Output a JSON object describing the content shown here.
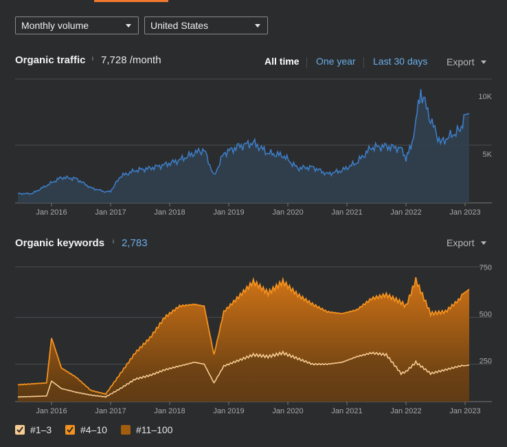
{
  "filters": {
    "volume_mode": "Monthly volume",
    "country": "United States"
  },
  "traffic": {
    "title": "Organic traffic",
    "info_mark": "i",
    "value": "7,728 /month",
    "ranges": {
      "all_time": "All time",
      "one_year": "One year",
      "last_30": "Last 30 days"
    },
    "export_label": "Export"
  },
  "keywords": {
    "title": "Organic keywords",
    "info_mark": "i",
    "value": "2,783",
    "export_label": "Export"
  },
  "legend": [
    {
      "label": "#1–3",
      "color": "#f8cd93",
      "checked": true
    },
    {
      "label": "#4–10",
      "color": "#f5921e",
      "checked": true
    },
    {
      "label": "#11–100",
      "color": "#a35d0f",
      "checked": false
    }
  ],
  "colors": {
    "traffic_line": "#3d7dc6",
    "traffic_fill": "#31404f",
    "kw_total_line": "#f5921e",
    "kw_top3_line": "#f8cd93",
    "grid": "#4a4b4e",
    "accent": "#f0782d"
  },
  "chart_data": [
    {
      "type": "line",
      "title": "Organic traffic",
      "x_tick_labels": [
        "Jan 2016",
        "Jan 2017",
        "Jan 2018",
        "Jan 2019",
        "Jan 2020",
        "Jan 2021",
        "Jan 2022",
        "Jan 2023"
      ],
      "y_tick_labels": [
        "10K",
        "5K"
      ],
      "ylim": [
        0,
        10000
      ],
      "grid": true,
      "series": [
        {
          "values": [
            [
              "2015-06",
              800
            ],
            [
              "2015-09",
              800
            ],
            [
              "2015-12",
              1500
            ],
            [
              "2016-03",
              2200
            ],
            [
              "2016-06",
              2100
            ],
            [
              "2016-09",
              1300
            ],
            [
              "2016-12",
              950
            ],
            [
              "2017-01",
              1000
            ],
            [
              "2017-03",
              2300
            ],
            [
              "2017-06",
              2800
            ],
            [
              "2017-09",
              3000
            ],
            [
              "2017-12",
              3300
            ],
            [
              "2018-03",
              3700
            ],
            [
              "2018-06",
              4300
            ],
            [
              "2018-08",
              4600
            ],
            [
              "2018-10",
              2300
            ],
            [
              "2018-12",
              4300
            ],
            [
              "2019-03",
              4900
            ],
            [
              "2019-06",
              5200
            ],
            [
              "2019-09",
              4300
            ],
            [
              "2019-12",
              4100
            ],
            [
              "2020-03",
              3000
            ],
            [
              "2020-06",
              3100
            ],
            [
              "2020-09",
              2500
            ],
            [
              "2020-12",
              2800
            ],
            [
              "2021-03",
              3500
            ],
            [
              "2021-06",
              4800
            ],
            [
              "2021-09",
              4900
            ],
            [
              "2021-12",
              4700
            ],
            [
              "2022-01",
              3900
            ],
            [
              "2022-02",
              4800
            ],
            [
              "2022-03",
              7000
            ],
            [
              "2022-04",
              9700
            ],
            [
              "2022-06",
              7200
            ],
            [
              "2022-08",
              5200
            ],
            [
              "2022-10",
              5800
            ],
            [
              "2022-12",
              6300
            ],
            [
              "2023-01",
              7728
            ]
          ]
        }
      ]
    },
    {
      "type": "area",
      "title": "Organic keywords",
      "x_tick_labels": [
        "Jan 2016",
        "Jan 2017",
        "Jan 2018",
        "Jan 2019",
        "Jan 2020",
        "Jan 2021",
        "Jan 2022",
        "Jan 2023"
      ],
      "y_tick_labels": [
        "750",
        "500",
        "250"
      ],
      "ylim": [
        50,
        770
      ],
      "grid": true,
      "series": [
        {
          "name": "#4–10",
          "values": [
            [
              "2015-06",
              140
            ],
            [
              "2015-12",
              150
            ],
            [
              "2016-01",
              390
            ],
            [
              "2016-03",
              230
            ],
            [
              "2016-06",
              180
            ],
            [
              "2016-09",
              110
            ],
            [
              "2016-12",
              90
            ],
            [
              "2017-03",
              200
            ],
            [
              "2017-06",
              310
            ],
            [
              "2017-09",
              390
            ],
            [
              "2017-12",
              500
            ],
            [
              "2018-03",
              560
            ],
            [
              "2018-06",
              570
            ],
            [
              "2018-08",
              560
            ],
            [
              "2018-10",
              300
            ],
            [
              "2018-12",
              530
            ],
            [
              "2019-03",
              610
            ],
            [
              "2019-06",
              690
            ],
            [
              "2019-09",
              630
            ],
            [
              "2019-12",
              690
            ],
            [
              "2020-03",
              620
            ],
            [
              "2020-06",
              570
            ],
            [
              "2020-09",
              530
            ],
            [
              "2020-12",
              520
            ],
            [
              "2021-03",
              540
            ],
            [
              "2021-06",
              600
            ],
            [
              "2021-09",
              620
            ],
            [
              "2021-12",
              580
            ],
            [
              "2022-01",
              560
            ],
            [
              "2022-03",
              700
            ],
            [
              "2022-06",
              520
            ],
            [
              "2022-09",
              530
            ],
            [
              "2022-12",
              600
            ],
            [
              "2023-01",
              650
            ]
          ]
        },
        {
          "name": "#1–3",
          "values": [
            [
              "2015-06",
              75
            ],
            [
              "2015-12",
              80
            ],
            [
              "2016-01",
              160
            ],
            [
              "2016-03",
              120
            ],
            [
              "2016-06",
              100
            ],
            [
              "2016-09",
              85
            ],
            [
              "2016-12",
              75
            ],
            [
              "2017-03",
              120
            ],
            [
              "2017-06",
              170
            ],
            [
              "2017-09",
              190
            ],
            [
              "2017-12",
              220
            ],
            [
              "2018-03",
              240
            ],
            [
              "2018-06",
              260
            ],
            [
              "2018-08",
              250
            ],
            [
              "2018-10",
              150
            ],
            [
              "2018-12",
              240
            ],
            [
              "2019-03",
              270
            ],
            [
              "2019-06",
              300
            ],
            [
              "2019-09",
              290
            ],
            [
              "2019-12",
              310
            ],
            [
              "2020-03",
              280
            ],
            [
              "2020-06",
              250
            ],
            [
              "2020-09",
              250
            ],
            [
              "2020-12",
              260
            ],
            [
              "2021-03",
              290
            ],
            [
              "2021-06",
              310
            ],
            [
              "2021-09",
              300
            ],
            [
              "2021-12",
              200
            ],
            [
              "2022-01",
              210
            ],
            [
              "2022-03",
              260
            ],
            [
              "2022-06",
              200
            ],
            [
              "2022-09",
              220
            ],
            [
              "2022-12",
              240
            ],
            [
              "2023-01",
              245
            ]
          ]
        }
      ]
    }
  ]
}
